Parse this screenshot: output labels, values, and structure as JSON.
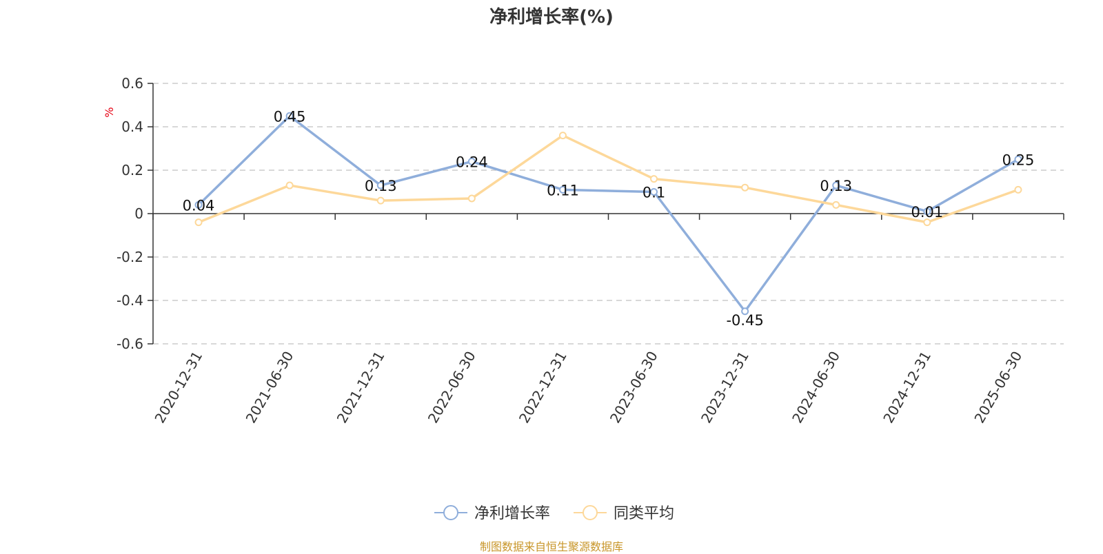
{
  "title": "净利增长率(%)",
  "source": "制图数据来自恒生聚源数据库",
  "colors": {
    "series1": "#8faedb",
    "series2": "#fdd89a",
    "axis": "#333333",
    "grid": "#cccccc",
    "unit": "#e60012",
    "source": "#c8962a"
  },
  "chart_data": {
    "type": "line",
    "title": "净利增长率(%)",
    "ylabel": "%",
    "xlabel": "",
    "ylim": [
      -0.6,
      0.6
    ],
    "yticks": [
      0.6,
      0.4,
      0.2,
      0,
      -0.2,
      -0.4,
      -0.6
    ],
    "ytick_labels": [
      "0.6",
      "0.4",
      "0.2",
      "0",
      "-0.2",
      "-0.4",
      "-0.6"
    ],
    "grid": true,
    "legend_position": "bottom-center",
    "categories": [
      "2020-12-31",
      "2021-06-30",
      "2021-12-31",
      "2022-06-30",
      "2022-12-31",
      "2023-06-30",
      "2023-12-31",
      "2024-06-30",
      "2024-12-31",
      "2025-06-30"
    ],
    "series": [
      {
        "name": "净利增长率",
        "values": [
          0.04,
          0.45,
          0.13,
          0.24,
          0.11,
          0.1,
          -0.45,
          0.13,
          0.01,
          0.25
        ],
        "labels": [
          "0.04",
          "0.45",
          "0.13",
          "0.24",
          "0.11",
          "0.1",
          "-0.45",
          "0.13",
          "0.01",
          "0.25"
        ]
      },
      {
        "name": "同类平均",
        "values": [
          -0.04,
          0.13,
          0.06,
          0.07,
          0.36,
          0.16,
          0.12,
          0.04,
          -0.04,
          0.11
        ]
      }
    ]
  }
}
